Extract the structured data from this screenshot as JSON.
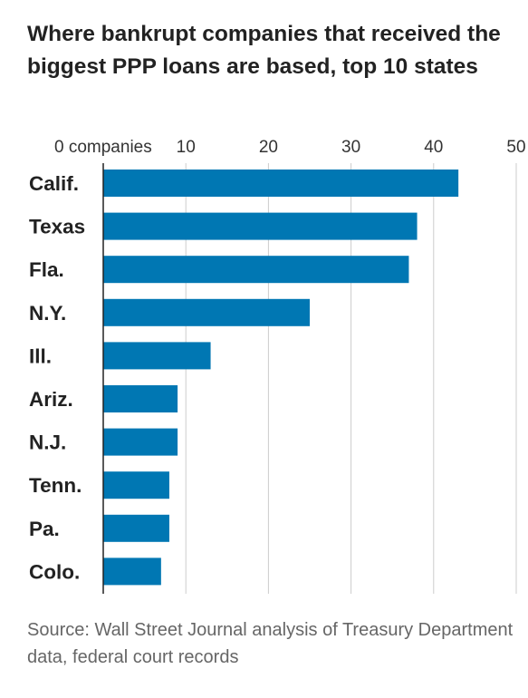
{
  "chart_data": {
    "type": "bar",
    "orientation": "horizontal",
    "title": "Where bankrupt companies that received the biggest PPP loans are based, top 10 states",
    "categories": [
      "Calif.",
      "Texas",
      "Fla.",
      "N.Y.",
      "Ill.",
      "Ariz.",
      "N.J.",
      "Tenn.",
      "Pa.",
      "Colo."
    ],
    "values": [
      43,
      38,
      37,
      25,
      13,
      9,
      9,
      8,
      8,
      7
    ],
    "xlim": [
      0,
      50
    ],
    "xticks": [
      0,
      10,
      20,
      30,
      40,
      50
    ],
    "xtick_labels": [
      "0 companies",
      "10",
      "20",
      "30",
      "40",
      "50"
    ],
    "xaxis_position": "top",
    "grid": "vertical",
    "bar_color": "#0077b3",
    "source": "Source: Wall Street Journal analysis of Treasury Department data, federal court records"
  }
}
